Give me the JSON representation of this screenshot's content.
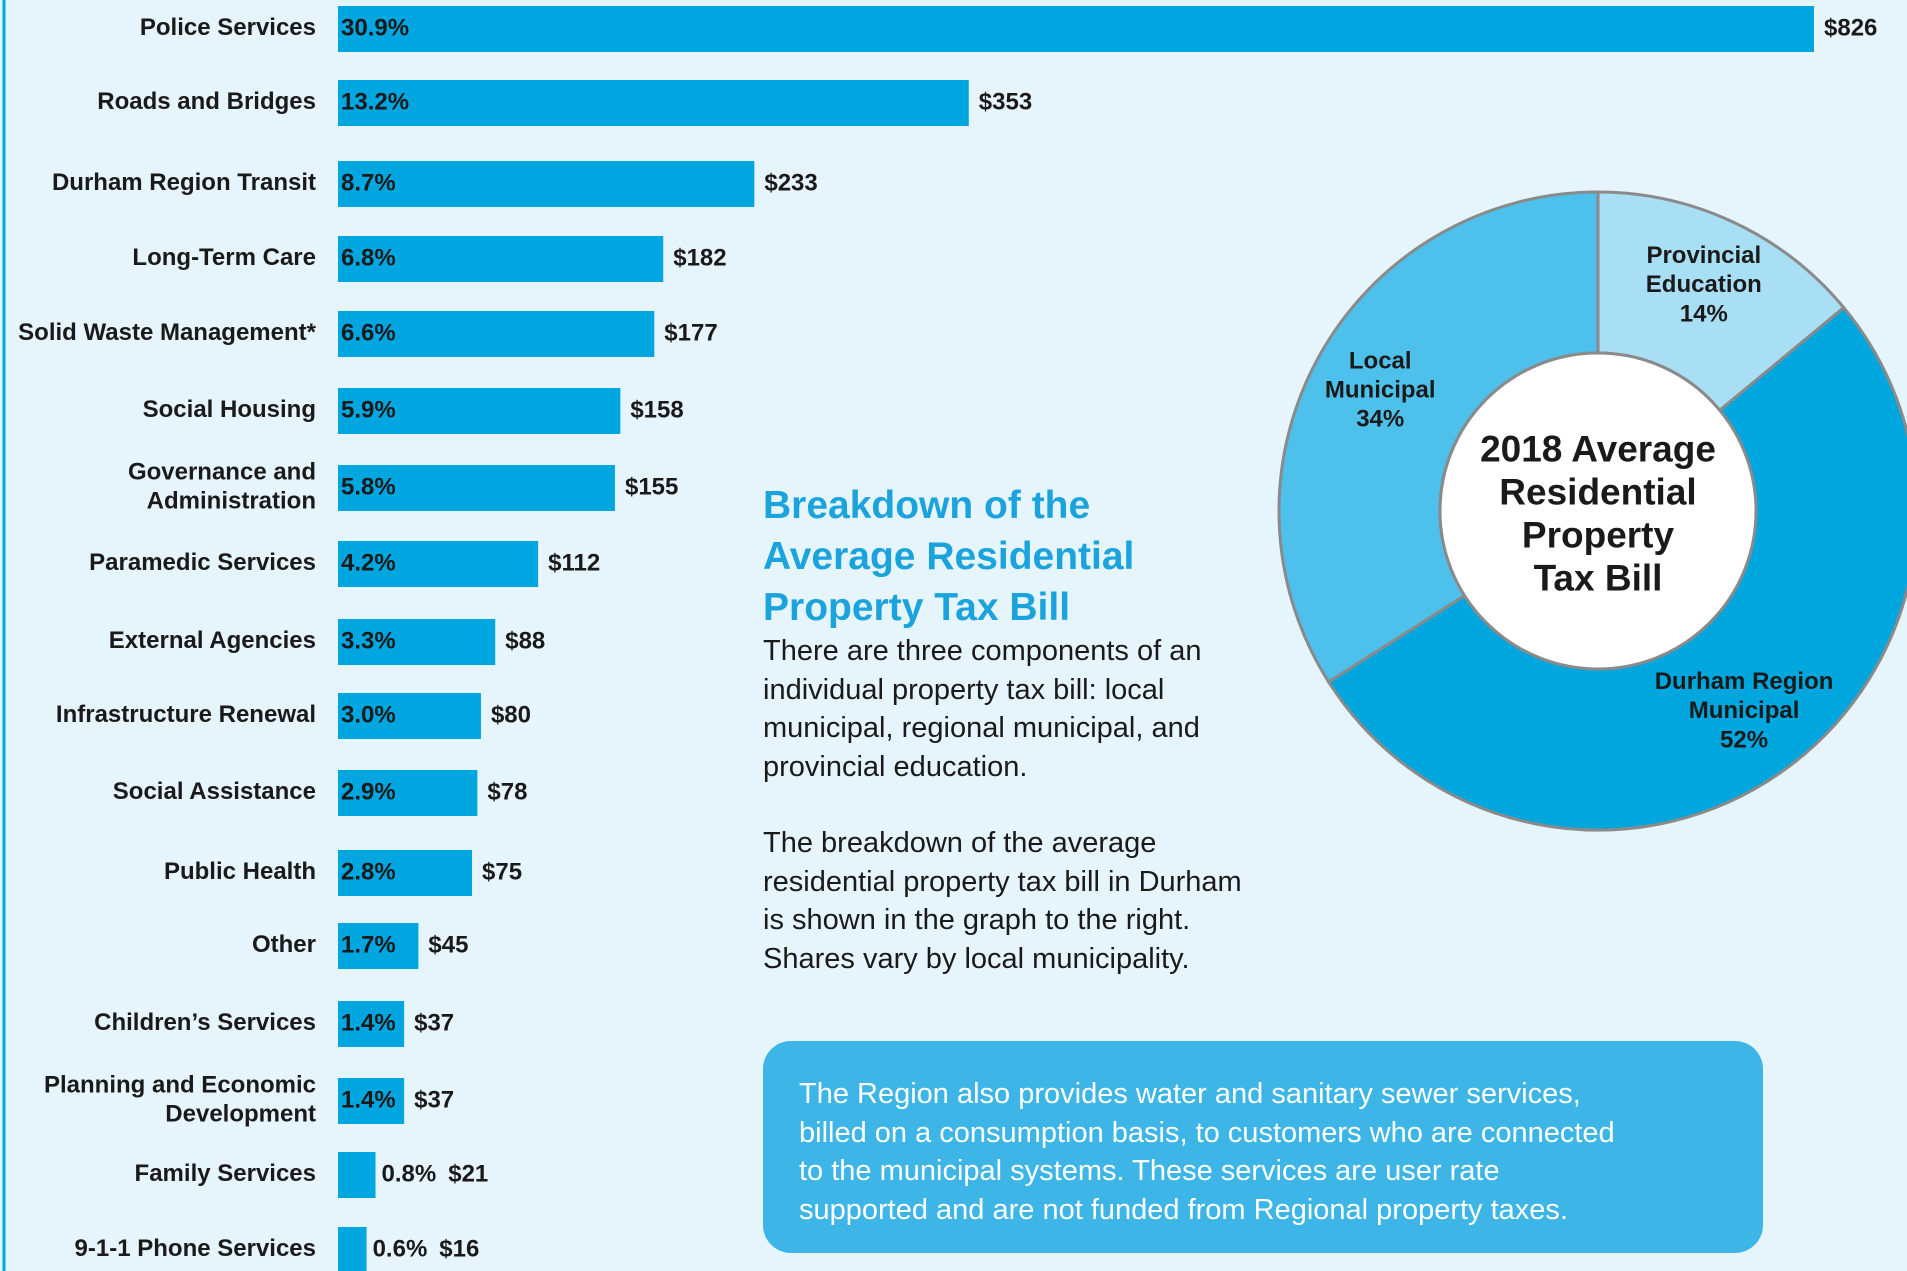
{
  "chart_data": [
    {
      "type": "bar",
      "orientation": "horizontal",
      "color": "#00a6e0",
      "categories": [
        "Police Services",
        "Roads and Bridges",
        "Durham Region Transit",
        "Long-Term Care",
        "Solid Waste Management*",
        "Social Housing",
        "Governance and\nAdministration",
        "Paramedic Services",
        "External Agencies",
        "Infrastructure Renewal",
        "Social Assistance",
        "Public Health",
        "Other",
        "Children’s Services",
        "Planning and Economic\nDevelopment",
        "Family Services",
        "9-1-1 Phone Services"
      ],
      "values": [
        826,
        353,
        233,
        182,
        177,
        158,
        155,
        112,
        88,
        80,
        78,
        75,
        45,
        37,
        37,
        21,
        16
      ],
      "value_labels": [
        "$826",
        "$353",
        "$233",
        "$182",
        "$177",
        "$158",
        "$155",
        "$112",
        "$88",
        "$80",
        "$78",
        "$75",
        "$45",
        "$37",
        "$37",
        "$21",
        "$16"
      ],
      "shares": [
        30.9,
        13.2,
        8.7,
        6.8,
        6.6,
        5.9,
        5.8,
        4.2,
        3.3,
        3.0,
        2.9,
        2.8,
        1.7,
        1.4,
        1.4,
        0.8,
        0.6
      ],
      "share_labels": [
        "30.9%",
        "13.2%",
        "8.7%",
        "6.8%",
        "6.6%",
        "5.9%",
        "5.8%",
        "4.2%",
        "3.3%",
        "3.0%",
        "2.9%",
        "2.8%",
        "1.7%",
        "1.4%",
        "1.4%",
        "0.8%",
        "0.6%"
      ]
    },
    {
      "type": "donut",
      "title": "2018 Average\nResidential\nProperty\nTax Bill",
      "categories": [
        "Provincial\nEducation",
        "Durham Region\nMunicipal",
        "Local\nMunicipal"
      ],
      "values": [
        14,
        52,
        34
      ],
      "value_labels": [
        "14%",
        "52%",
        "34%"
      ],
      "colors": [
        "#a8dff5",
        "#00a6de",
        "#4dc0eb"
      ],
      "label_colors": [
        "#1a1a1a",
        "#ffffff",
        "#1a1a1a"
      ]
    }
  ],
  "heading": "Breakdown of the\nAverage Residential\nProperty Tax Bill",
  "paragraphs": [
    "There are three components of an\nindividual property tax bill: local\nmunicipal, regional municipal, and\nprovincial education.",
    "The breakdown of the average\nresidential property tax bill in Durham\nis shown in the graph to the right.\nShares vary by local municipality."
  ],
  "note": "The Region also provides water and sanitary sewer services,\nbilled on a consumption basis, to customers who are connected\nto the municipal systems. These services are user rate\nsupported and are not funded from Regional property taxes."
}
